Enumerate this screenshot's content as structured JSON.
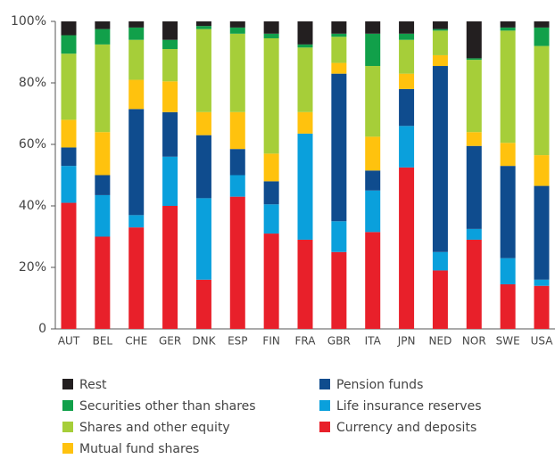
{
  "chart_data": {
    "type": "stacked_bar",
    "categories": [
      "AUT",
      "BEL",
      "CHE",
      "GER",
      "DNK",
      "ESP",
      "FIN",
      "FRA",
      "GBR",
      "ITA",
      "JPN",
      "NED",
      "NOR",
      "SWE",
      "USA"
    ],
    "series": [
      {
        "name": "Rest",
        "color": "#231f20",
        "values": [
          4.5,
          2.5,
          2,
          6,
          1.5,
          2,
          4,
          7.5,
          4,
          4,
          4,
          2.5,
          12,
          2,
          2
        ]
      },
      {
        "name": "Securities other than shares",
        "color": "#11a04a",
        "values": [
          6,
          5,
          4,
          3,
          1,
          2,
          1.5,
          1,
          1,
          10.5,
          2,
          0.5,
          0.5,
          1,
          6
        ]
      },
      {
        "name": "Shares and other equity",
        "color": "#a6ce39",
        "values": [
          21.5,
          28.5,
          13,
          10.5,
          27,
          25.5,
          37.5,
          21,
          8.5,
          23,
          11,
          8,
          23.5,
          36.5,
          35.5
        ]
      },
      {
        "name": "Mutual fund shares",
        "color": "#ffc20e",
        "values": [
          9,
          14,
          9.5,
          10,
          7.5,
          12,
          9,
          7,
          3.5,
          11,
          5,
          3.5,
          4.5,
          7.5,
          10
        ]
      },
      {
        "name": "Pension funds",
        "color": "#0f4c8e",
        "values": [
          6,
          6.5,
          34.5,
          14.5,
          20.5,
          8.5,
          7.5,
          0,
          48,
          6.5,
          12,
          60.5,
          27,
          30,
          30.5
        ]
      },
      {
        "name": "Life insurance reserves",
        "color": "#0aa0dc",
        "values": [
          12,
          13.5,
          4,
          16,
          26.5,
          7,
          9.5,
          34.5,
          10,
          13.5,
          13.5,
          6,
          3.5,
          8.5,
          2
        ]
      },
      {
        "name": "Currency and deposits",
        "color": "#e8202a",
        "values": [
          41,
          30,
          33,
          40,
          16,
          43,
          31,
          29,
          25,
          31.5,
          52.5,
          19,
          29,
          14.5,
          14
        ]
      }
    ],
    "ylim": [
      0,
      100
    ],
    "yticks": [
      0,
      {
        "value": 20,
        "label": "20%"
      },
      {
        "value": 40,
        "label": "40%"
      },
      {
        "value": 60,
        "label": "60%"
      },
      {
        "value": 80,
        "label": "80%"
      },
      {
        "value": 100,
        "label": "100%"
      }
    ],
    "grid": false
  }
}
